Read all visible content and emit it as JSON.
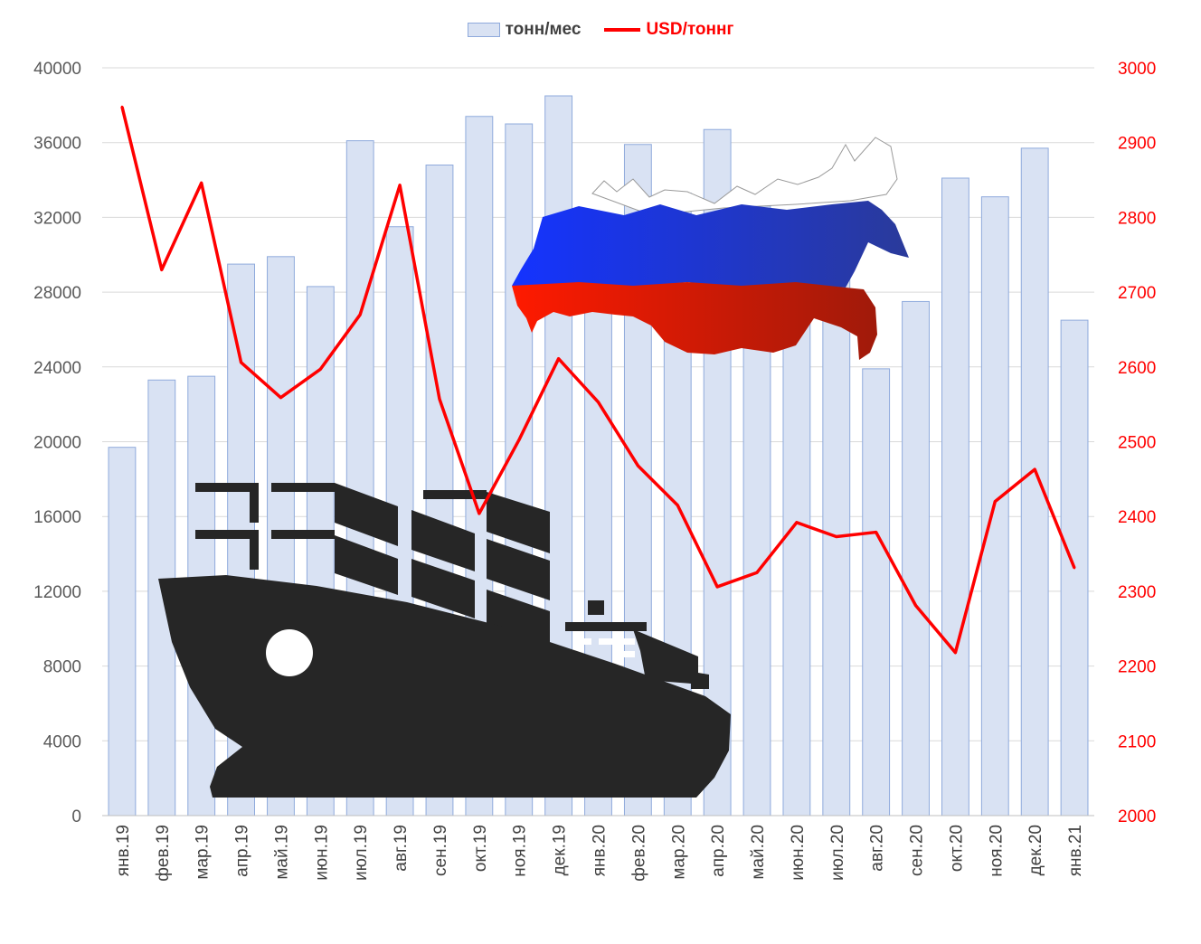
{
  "chart_data": {
    "type": "bar",
    "categories": [
      "янв.19",
      "фев.19",
      "мар.19",
      "апр.19",
      "май.19",
      "июн.19",
      "июл.19",
      "авг.19",
      "сен.19",
      "окт.19",
      "ноя.19",
      "дек.19",
      "янв.20",
      "фев.20",
      "мар.20",
      "апр.20",
      "май.20",
      "июн.20",
      "июл.20",
      "авг.20",
      "сен.20",
      "окт.20",
      "ноя.20",
      "дек.20",
      "янв.21"
    ],
    "series": [
      {
        "name": "тонн/мес",
        "type": "bar",
        "axis": "left",
        "color": "#d9e2f3",
        "values": [
          19700,
          23300,
          23500,
          29500,
          29900,
          28300,
          36100,
          31500,
          34800,
          37400,
          37000,
          38500,
          29000,
          35900,
          33300,
          36700,
          32600,
          30500,
          31000,
          23900,
          27500,
          34100,
          33100,
          35700,
          26500
        ]
      },
      {
        "name": "USD/тонн",
        "type": "line",
        "axis": "right",
        "color": "#ff0000",
        "values": [
          2948,
          2730,
          2846,
          2606,
          2559,
          2597,
          2670,
          2843,
          2557,
          2404,
          2502,
          2611,
          2553,
          2468,
          2415,
          2306,
          2325,
          2392,
          2373,
          2379,
          2281,
          2218,
          2420,
          2463,
          2331
        ]
      }
    ],
    "ylim_left": [
      0,
      40000
    ],
    "yticks_left": [
      "0",
      "4000",
      "8000",
      "12000",
      "16000",
      "20000",
      "24000",
      "28000",
      "32000",
      "36000",
      "40000"
    ],
    "ylim_right": [
      2000,
      3000
    ],
    "yticks_right": [
      "2000",
      "2100",
      "2200",
      "2300",
      "2400",
      "2500",
      "2600",
      "2700",
      "2800",
      "2900",
      "3000"
    ],
    "grid": true,
    "legend_position": "top-center"
  },
  "legend": {
    "bars_label": "тонн/мес",
    "line_label": "USD/тонн",
    "line_suffix": "г"
  },
  "illustrations": {
    "ship": "cargo-ship-icon",
    "map": "russia-flag-map-icon"
  },
  "colors": {
    "bar_fill": "#d9e2f3",
    "bar_edge": "#8faadc",
    "line": "#ff0000",
    "grid": "#d9d9d9",
    "ship": "#262626",
    "flag_white": "#ffffff",
    "flag_blue": "#1f3fd6",
    "flag_red": "#e01d0c"
  }
}
